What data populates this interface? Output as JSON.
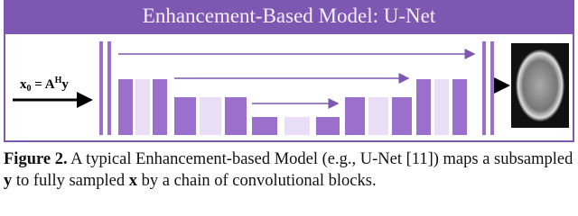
{
  "header": {
    "title": "Enhancement-Based Model: U-Net"
  },
  "diagram": {
    "input_label": {
      "base": "x",
      "sub": "0",
      "eq": " = A",
      "sup": "H",
      "end": "y"
    }
  },
  "caption": {
    "parts": [
      {
        "text": "Figure 2.",
        "bold": true
      },
      {
        "text": " A typical Enhancement-based Model (e.g., U-Net [11]) maps a subsampled ",
        "bold": false
      },
      {
        "text": "y",
        "bold": true
      },
      {
        "text": " to fully sampled ",
        "bold": false
      },
      {
        "text": "x",
        "bold": true
      },
      {
        "text": " by a chain of convolutional blocks.",
        "bold": false
      }
    ]
  }
}
